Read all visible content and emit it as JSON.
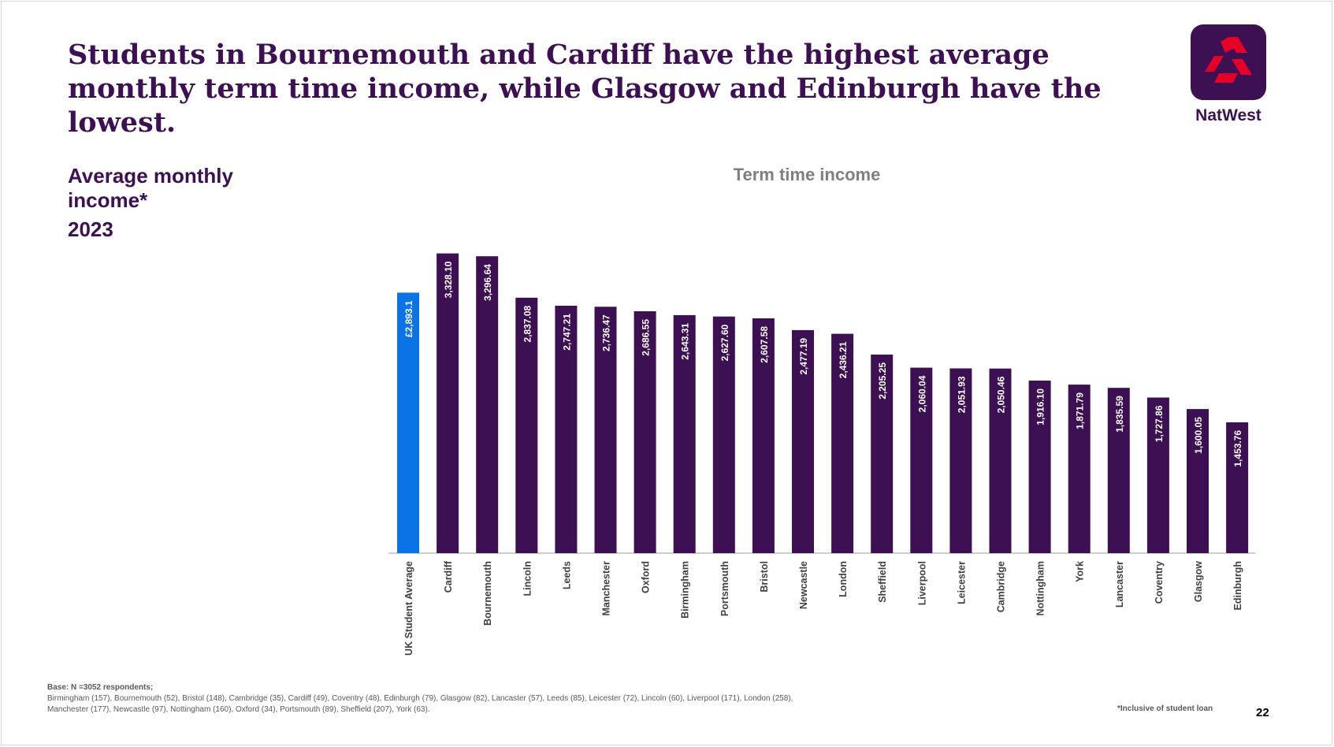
{
  "headline": "Students in Bournemouth and Cardiff have the highest average monthly term time income, while Glasgow and Edinburgh have the lowest.",
  "subtitle": "Average monthly income*",
  "year": "2023",
  "brand": {
    "name": "NatWest",
    "color": "#3c1053",
    "accent": "#e60028"
  },
  "chart_data": {
    "type": "bar",
    "title": "Term time income",
    "xlabel": "",
    "ylabel": "",
    "ylim": [
      0,
      3500
    ],
    "categories": [
      "UK Student Average",
      "Cardiff",
      "Bournemouth",
      "Lincoln",
      "Leeds",
      "Manchester",
      "Oxford",
      "Birmingham",
      "Portsmouth",
      "Bristol",
      "Newcastle",
      "London",
      "Sheffield",
      "Liverpool",
      "Leicester",
      "Cambridge",
      "Nottingham",
      "York",
      "Lancaster",
      "Coventry",
      "Glasgow",
      "Edinburgh"
    ],
    "values": [
      2893.1,
      3328.1,
      3296.64,
      2837.08,
      2747.21,
      2736.47,
      2686.55,
      2643.31,
      2627.6,
      2607.58,
      2477.19,
      2436.21,
      2205.25,
      2060.04,
      2051.93,
      2050.46,
      1916.1,
      1871.79,
      1835.59,
      1727.86,
      1600.05,
      1453.76
    ],
    "data_labels": [
      "£2,893.1",
      "3,328.10",
      "3,296.64",
      "2,837.08",
      "2,747.21",
      "2,736.47",
      "2,686.55",
      "2,643.31",
      "2,627.60",
      "2,607.58",
      "2,477.19",
      "2,436.21",
      "2,205.25",
      "2,060.04",
      "2,051.93",
      "2,050.46",
      "1,916.10",
      "1,871.79",
      "1,835.59",
      "1,727.86",
      "1,600.05",
      "1,453.76"
    ],
    "highlight_index": 0,
    "colors": {
      "bar": "#3c1053",
      "highlight": "#0a73e6"
    },
    "grid": false,
    "legend": "none"
  },
  "base": {
    "heading": "Base: N =3052 respondents;",
    "line1": "Birmingham (157),  Bournemouth (52), Bristol (148), Cambridge (35), Cardiff (49), Coventry (48),  Edinburgh (79), Glasgow (82), Lancaster (57), Leeds (85), Leicester (72), Lincoln (60), Liverpool (171), London (258),",
    "line2": "Manchester (177), Newcastle (97), Nottingham (160), Oxford (34), Portsmouth (89), Sheffield (207), York (63)."
  },
  "footnote": "*Inclusive of student loan",
  "page_number": "22"
}
